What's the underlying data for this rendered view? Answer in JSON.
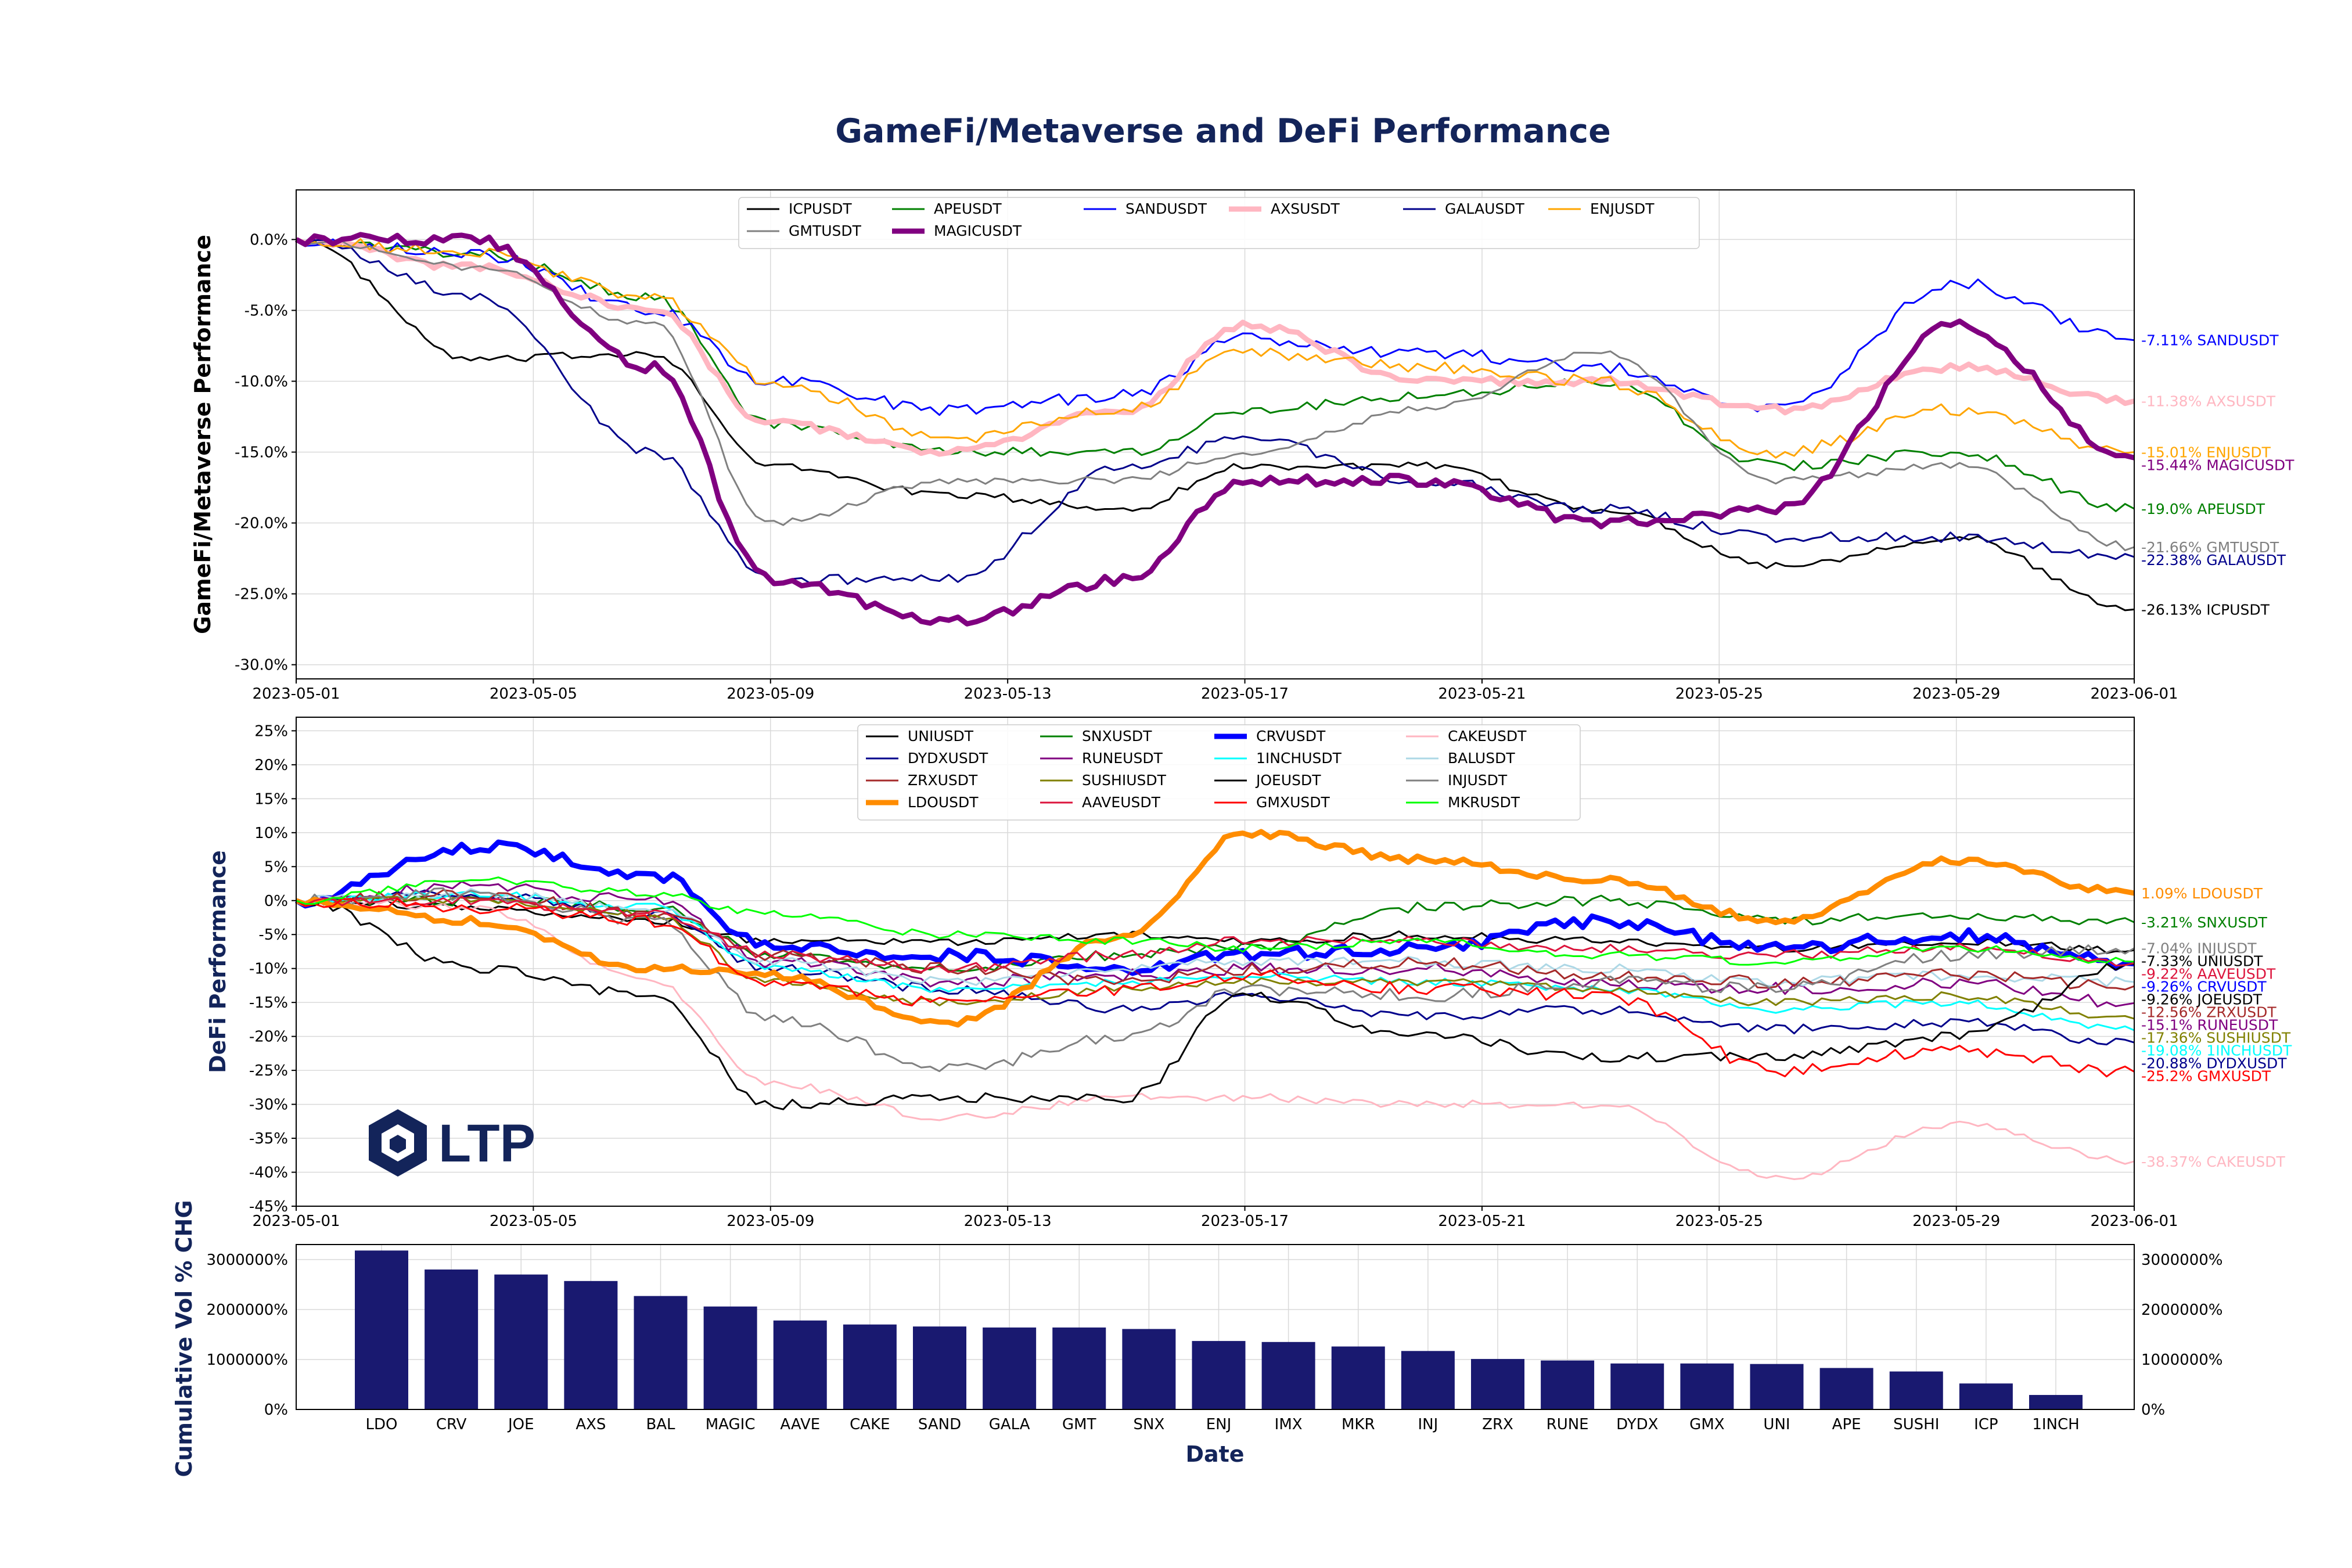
{
  "title": "GameFi/Metaverse and DeFi Performance",
  "logo": {
    "text": "LTP"
  },
  "chart_data": [
    {
      "type": "line",
      "ylabel": "GameFi/Metaverse Performance",
      "x_range": [
        "2023-05-01",
        "2023-06-01"
      ],
      "x_ticks": [
        "2023-05-01",
        "2023-05-05",
        "2023-05-09",
        "2023-05-13",
        "2023-05-17",
        "2023-05-21",
        "2023-05-25",
        "2023-05-29",
        "2023-06-01"
      ],
      "ylim": [
        -31,
        3.5
      ],
      "y_ticks": [
        0,
        -5,
        -10,
        -15,
        -20,
        -25,
        -30
      ],
      "y_tick_labels": [
        "0.0%",
        "-5.0%",
        "-10.0%",
        "-15.0%",
        "-20.0%",
        "-25.0%",
        "-30.0%"
      ],
      "grid": true,
      "legend_position": "top-center",
      "anchor_dates": [
        "2023-05-01",
        "2023-05-04",
        "2023-05-07",
        "2023-05-09",
        "2023-05-12",
        "2023-05-15",
        "2023-05-17",
        "2023-05-20",
        "2023-05-23",
        "2023-05-26",
        "2023-05-29",
        "2023-06-01"
      ],
      "series": [
        {
          "name": "ICPUSDT",
          "color": "#000000",
          "width": 3,
          "end_label": "-26.13% ICPUSDT",
          "anchors": [
            0,
            -8.5,
            -8,
            -16,
            -18,
            -19,
            -16,
            -16,
            -19,
            -23,
            -21,
            -26.1
          ]
        },
        {
          "name": "APEUSDT",
          "color": "#008000",
          "width": 3,
          "end_label": "-19.0% APEUSDT",
          "anchors": [
            0,
            -1,
            -4,
            -13,
            -15,
            -15,
            -12,
            -11,
            -10,
            -16,
            -15,
            -19
          ]
        },
        {
          "name": "SANDUSDT",
          "color": "#0000ff",
          "width": 3,
          "end_label": "-7.11% SANDUSDT",
          "anchors": [
            0,
            -1,
            -5,
            -10,
            -12,
            -11,
            -7,
            -8,
            -9,
            -12,
            -3,
            -7.1
          ]
        },
        {
          "name": "AXSUSDT",
          "color": "#ffb6c1",
          "width": 9,
          "end_label": "-11.38% AXSUSDT",
          "anchors": [
            0,
            -2,
            -5,
            -13,
            -15,
            -12,
            -6,
            -10,
            -10,
            -12,
            -9,
            -11.4
          ]
        },
        {
          "name": "GALAUSDT",
          "color": "#00008b",
          "width": 3,
          "end_label": "-22.38% GALAUSDT",
          "anchors": [
            0,
            -4,
            -15,
            -24,
            -24,
            -16,
            -14,
            -17,
            -19,
            -21,
            -21,
            -22.4
          ]
        },
        {
          "name": "ENJUSDT",
          "color": "#ffa500",
          "width": 3,
          "end_label": "-15.01% ENJUSDT",
          "anchors": [
            0,
            -1,
            -4,
            -10,
            -14,
            -12,
            -8,
            -9,
            -10,
            -15,
            -12,
            -15
          ]
        },
        {
          "name": "GMTUSDT",
          "color": "#808080",
          "width": 3,
          "end_label": "-21.66% GMTUSDT",
          "anchors": [
            0,
            -2,
            -6,
            -20,
            -17,
            -17,
            -15,
            -12,
            -8,
            -17,
            -16,
            -21.7
          ]
        },
        {
          "name": "MAGICUSDT",
          "color": "#800080",
          "width": 9,
          "end_label": "-15.44% MAGICUSDT",
          "anchors": [
            0,
            0,
            -9,
            -24,
            -27,
            -24,
            -17,
            -17,
            -20,
            -19,
            -6,
            -15.4
          ]
        }
      ]
    },
    {
      "type": "line",
      "ylabel": "DeFi Performance",
      "x_range": [
        "2023-05-01",
        "2023-06-01"
      ],
      "x_ticks": [
        "2023-05-01",
        "2023-05-05",
        "2023-05-09",
        "2023-05-13",
        "2023-05-17",
        "2023-05-21",
        "2023-05-25",
        "2023-05-29",
        "2023-06-01"
      ],
      "ylim": [
        -45,
        27
      ],
      "y_ticks": [
        25,
        20,
        15,
        10,
        5,
        0,
        -5,
        -10,
        -15,
        -20,
        -25,
        -30,
        -35,
        -40,
        -45
      ],
      "y_tick_labels": [
        "25%",
        "20%",
        "15%",
        "10%",
        "5%",
        "0%",
        "-5%",
        "-10%",
        "-15%",
        "-20%",
        "-25%",
        "-30%",
        "-35%",
        "-40%",
        "-45%"
      ],
      "grid": true,
      "legend_position": "top-center",
      "anchor_dates": [
        "2023-05-01",
        "2023-05-04",
        "2023-05-07",
        "2023-05-09",
        "2023-05-12",
        "2023-05-15",
        "2023-05-17",
        "2023-05-20",
        "2023-05-23",
        "2023-05-26",
        "2023-05-29",
        "2023-06-01"
      ],
      "series": [
        {
          "name": "UNIUSDT",
          "color": "#000000",
          "width": 3,
          "end_label": "-7.33% UNIUSDT",
          "anchors": [
            0,
            -1,
            -3,
            -6,
            -6,
            -5,
            -6,
            -5,
            -6,
            -7,
            -6,
            -7.3
          ]
        },
        {
          "name": "SNXUSDT",
          "color": "#008000",
          "width": 3,
          "end_label": "-3.21% SNXUSDT",
          "anchors": [
            0,
            0,
            -1,
            -8,
            -10,
            -8,
            -7,
            -1,
            0,
            -3,
            -2,
            -3.2
          ]
        },
        {
          "name": "CRVUSDT",
          "color": "#0000ff",
          "width": 9,
          "end_label": "-9.26% CRVUSDT",
          "anchors": [
            0,
            8,
            4,
            -7,
            -8,
            -10,
            -8,
            -7,
            -3,
            -7,
            -5,
            -9.3
          ]
        },
        {
          "name": "CAKEUSDT",
          "color": "#ffb6c1",
          "width": 3,
          "end_label": "-38.37% CAKEUSDT",
          "anchors": [
            0,
            -1,
            -12,
            -27,
            -32,
            -29,
            -29,
            -30,
            -30,
            -41,
            -33,
            -38.4
          ]
        },
        {
          "name": "DYDXUSDT",
          "color": "#00008b",
          "width": 3,
          "end_label": "-20.88% DYDXUSDT",
          "anchors": [
            0,
            1,
            -2,
            -10,
            -13,
            -16,
            -14,
            -17,
            -16,
            -19,
            -18,
            -20.9
          ]
        },
        {
          "name": "RUNEUSDT",
          "color": "#800080",
          "width": 3,
          "end_label": "-15.1% RUNEUSDT",
          "anchors": [
            0,
            2,
            0,
            -9,
            -12,
            -11,
            -10,
            -10,
            -12,
            -13,
            -12,
            -15.1
          ]
        },
        {
          "name": "1INCHUSDT",
          "color": "#00ffff",
          "width": 3,
          "end_label": "-19.08% 1INCHUSDT",
          "anchors": [
            0,
            1,
            -1,
            -10,
            -13,
            -12,
            -11,
            -12,
            -13,
            -16,
            -15,
            -19.1
          ]
        },
        {
          "name": "BALUSDT",
          "color": "#add8e6",
          "width": 3,
          "end_label": "",
          "anchors": [
            0,
            1,
            -1,
            -9,
            -12,
            -10,
            -9,
            -9,
            -10,
            -12,
            -11,
            -12
          ]
        },
        {
          "name": "ZRXUSDT",
          "color": "#a52a2a",
          "width": 3,
          "end_label": "-12.56% ZRXUSDT",
          "anchors": [
            0,
            1,
            -2,
            -8,
            -10,
            -12,
            -10,
            -9,
            -11,
            -12,
            -11,
            -12.6
          ]
        },
        {
          "name": "SUSHIUSDT",
          "color": "#808000",
          "width": 3,
          "end_label": "-17.36% SUSHIUSDT",
          "anchors": [
            0,
            0,
            -2,
            -12,
            -15,
            -13,
            -12,
            -12,
            -13,
            -15,
            -14,
            -17.4
          ]
        },
        {
          "name": "JOEUSDT",
          "color": "#000000",
          "width": 3,
          "end_label": "-9.26% JOEUSDT",
          "anchors": [
            0,
            -10,
            -14,
            -30,
            -29,
            -29,
            -14,
            -20,
            -23,
            -23,
            -20,
            -9.3
          ]
        },
        {
          "name": "INJUSDT",
          "color": "#808080",
          "width": 3,
          "end_label": "-7.04% INJUSDT",
          "anchors": [
            0,
            1,
            -3,
            -17,
            -25,
            -20,
            -13,
            -14,
            -12,
            -13,
            -8,
            -7
          ]
        },
        {
          "name": "LDOUSDT",
          "color": "#ff8c00",
          "width": 9,
          "end_label": "1.09% LDOUSDT",
          "anchors": [
            0,
            -3,
            -10,
            -11,
            -18,
            -5,
            10,
            6,
            3,
            -3,
            6,
            1.1
          ]
        },
        {
          "name": "AAVEUSDT",
          "color": "#dc143c",
          "width": 3,
          "end_label": "-9.22% AAVEUSDT",
          "anchors": [
            0,
            0,
            -2,
            -8,
            -10,
            -8,
            -6,
            -6,
            -7,
            -8,
            -7,
            -9.2
          ]
        },
        {
          "name": "GMXUSDT",
          "color": "#ff0000",
          "width": 3,
          "end_label": "-25.2% GMXUSDT",
          "anchors": [
            0,
            -1,
            -3,
            -12,
            -15,
            -13,
            -11,
            -13,
            -14,
            -25,
            -22,
            -25.2
          ]
        },
        {
          "name": "MKRUSDT",
          "color": "#00ff00",
          "width": 3,
          "end_label": "",
          "anchors": [
            0,
            3,
            1,
            -2,
            -5,
            -6,
            -7,
            -6,
            -8,
            -9,
            -7,
            -9
          ]
        }
      ]
    },
    {
      "type": "bar",
      "ylabel": "Cumulative Vol % CHG",
      "xlabel": "Date",
      "categories": [
        "LDO",
        "CRV",
        "JOE",
        "AXS",
        "BAL",
        "MAGIC",
        "AAVE",
        "CAKE",
        "SAND",
        "GALA",
        "GMT",
        "SNX",
        "ENJ",
        "IMX",
        "MKR",
        "INJ",
        "ZRX",
        "RUNE",
        "DYDX",
        "GMX",
        "UNI",
        "APE",
        "SUSHI",
        "ICP",
        "1INCH"
      ],
      "values": [
        3180000,
        2800000,
        2700000,
        2570000,
        2270000,
        2060000,
        1780000,
        1700000,
        1660000,
        1640000,
        1640000,
        1610000,
        1370000,
        1350000,
        1260000,
        1170000,
        1010000,
        980000,
        920000,
        920000,
        910000,
        830000,
        760000,
        520000,
        290000
      ],
      "ylim": [
        0,
        3300000
      ],
      "y_ticks": [
        0,
        1000000,
        2000000,
        3000000
      ],
      "y_tick_labels": [
        "0%",
        "1000000%",
        "2000000%",
        "3000000%"
      ],
      "color": "#191970",
      "grid": true
    }
  ]
}
